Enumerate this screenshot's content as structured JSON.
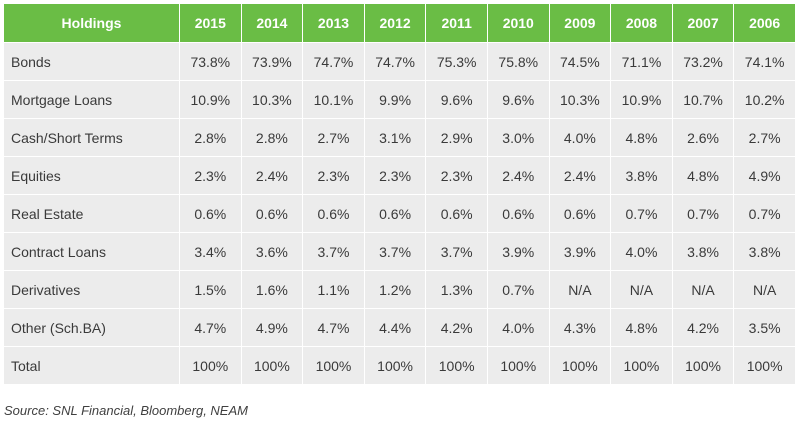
{
  "table": {
    "header_label": "Holdings",
    "years": [
      "2015",
      "2014",
      "2013",
      "2012",
      "2011",
      "2010",
      "2009",
      "2008",
      "2007",
      "2006"
    ],
    "rows": [
      {
        "label": "Bonds",
        "values": [
          "73.8%",
          "73.9%",
          "74.7%",
          "74.7%",
          "75.3%",
          "75.8%",
          "74.5%",
          "71.1%",
          "73.2%",
          "74.1%"
        ]
      },
      {
        "label": "Mortgage Loans",
        "values": [
          "10.9%",
          "10.3%",
          "10.1%",
          "9.9%",
          "9.6%",
          "9.6%",
          "10.3%",
          "10.9%",
          "10.7%",
          "10.2%"
        ]
      },
      {
        "label": "Cash/Short Terms",
        "values": [
          "2.8%",
          "2.8%",
          "2.7%",
          "3.1%",
          "2.9%",
          "3.0%",
          "4.0%",
          "4.8%",
          "2.6%",
          "2.7%"
        ]
      },
      {
        "label": "Equities",
        "values": [
          "2.3%",
          "2.4%",
          "2.3%",
          "2.3%",
          "2.3%",
          "2.4%",
          "2.4%",
          "3.8%",
          "4.8%",
          "4.9%"
        ]
      },
      {
        "label": "Real Estate",
        "values": [
          "0.6%",
          "0.6%",
          "0.6%",
          "0.6%",
          "0.6%",
          "0.6%",
          "0.6%",
          "0.7%",
          "0.7%",
          "0.7%"
        ]
      },
      {
        "label": "Contract Loans",
        "values": [
          "3.4%",
          "3.6%",
          "3.7%",
          "3.7%",
          "3.7%",
          "3.9%",
          "3.9%",
          "4.0%",
          "3.8%",
          "3.8%"
        ]
      },
      {
        "label": "Derivatives",
        "values": [
          "1.5%",
          "1.6%",
          "1.1%",
          "1.2%",
          "1.3%",
          "0.7%",
          "N/A",
          "N/A",
          "N/A",
          "N/A"
        ]
      },
      {
        "label": "Other (Sch.BA)",
        "values": [
          "4.7%",
          "4.9%",
          "4.7%",
          "4.4%",
          "4.2%",
          "4.0%",
          "4.3%",
          "4.8%",
          "4.2%",
          "3.5%"
        ]
      },
      {
        "label": "Total",
        "values": [
          "100%",
          "100%",
          "100%",
          "100%",
          "100%",
          "100%",
          "100%",
          "100%",
          "100%",
          "100%"
        ]
      }
    ]
  },
  "source_note": "Source: SNL Financial, Bloomberg, NEAM",
  "colors": {
    "header_background": "#6abd45",
    "header_text": "#ffffff",
    "cell_background": "#ececec",
    "cell_text": "#3a3a3a"
  }
}
